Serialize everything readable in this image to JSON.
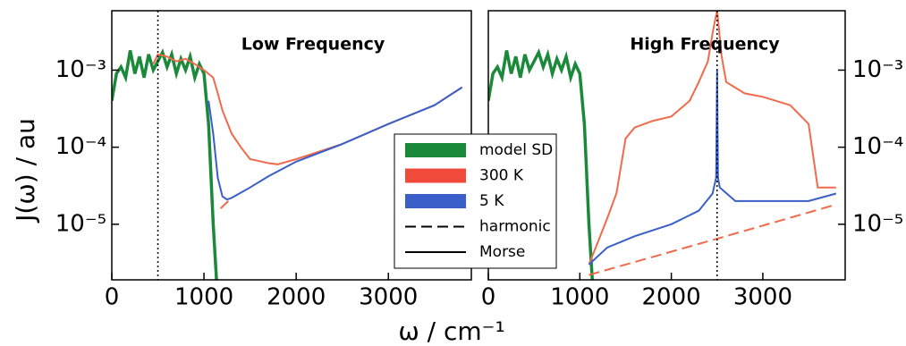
{
  "chart_data": [
    {
      "type": "line",
      "title": "Low Frequency",
      "ylabel": "J(ω) / au",
      "log_y": true,
      "tick_side": "left",
      "xlim": [
        0,
        3900
      ],
      "xticks": [
        0,
        1000,
        2000,
        3000
      ],
      "ylim": [
        1.9e-06,
        0.0059
      ],
      "yticks": [
        {
          "value": 0.001,
          "label": "10⁻³"
        },
        {
          "value": 0.0001,
          "label": "10⁻⁴"
        },
        {
          "value": 1e-05,
          "label": "10⁻⁵"
        }
      ],
      "vline": 500,
      "series": [
        {
          "name": "model SD",
          "color": "#1a8a3a",
          "dash": false,
          "x": [
            0,
            50,
            100,
            150,
            200,
            250,
            300,
            350,
            400,
            450,
            500,
            550,
            600,
            650,
            700,
            750,
            800,
            850,
            900,
            950,
            1000,
            1050,
            1100,
            1150
          ],
          "values": [
            0.0004,
            0.0009,
            0.0011,
            0.0008,
            0.0018,
            0.0009,
            0.0015,
            0.0008,
            0.0016,
            0.001,
            0.0013,
            0.0017,
            0.0011,
            0.0016,
            0.0009,
            0.0014,
            0.001,
            0.0015,
            0.0008,
            0.0012,
            0.0009,
            0.0002,
            1e-05,
            1e-06
          ]
        },
        {
          "name": "300 K",
          "color": "#f06a4c",
          "dash": false,
          "x": [
            450,
            500,
            600,
            700,
            800,
            900,
            1000,
            1100,
            1150,
            1200,
            1300,
            1400,
            1500,
            1600,
            1700,
            1800,
            2000,
            2500,
            3000,
            3500,
            3800
          ],
          "values": [
            0.0012,
            0.0016,
            0.0015,
            0.0013,
            0.0014,
            0.0012,
            0.001,
            0.0008,
            0.0005,
            0.0003,
            0.00015,
            0.0001,
            7e-05,
            6.6e-05,
            6.2e-05,
            6e-05,
            7e-05,
            0.00011,
            0.0002,
            0.00035,
            0.0006
          ]
        },
        {
          "name": "5 K",
          "color": "#3a5fc8",
          "dash": false,
          "x": [
            1050,
            1100,
            1150,
            1200,
            1250,
            1300,
            1500,
            1700,
            2000,
            2500,
            3000,
            3500,
            3800
          ],
          "values": [
            0.0004,
            0.00015,
            4e-05,
            2.3e-05,
            2.1e-05,
            2.2e-05,
            3e-05,
            4.2e-05,
            6.5e-05,
            0.00011,
            0.0002,
            0.00035,
            0.0006
          ]
        },
        {
          "name": "harmonic",
          "color": "#f06a4c",
          "dash": true,
          "x": [
            1180,
            1300
          ],
          "values": [
            1.6e-05,
            2.2e-05
          ]
        }
      ]
    },
    {
      "type": "line",
      "title": "High Frequency",
      "xlabel": "ω / cm⁻¹",
      "log_y": true,
      "tick_side": "right",
      "xlim": [
        0,
        3900
      ],
      "xticks": [
        0,
        1000,
        2000,
        3000
      ],
      "ylim": [
        1.9e-06,
        0.0059
      ],
      "yticks": [
        {
          "value": 0.001,
          "label": "10⁻³"
        },
        {
          "value": 0.0001,
          "label": "10⁻⁴"
        },
        {
          "value": 1e-05,
          "label": "10⁻⁵"
        }
      ],
      "vline": 2500,
      "series": [
        {
          "name": "model SD",
          "color": "#1a8a3a",
          "dash": false,
          "x": [
            0,
            50,
            100,
            150,
            200,
            250,
            300,
            350,
            400,
            450,
            500,
            550,
            600,
            650,
            700,
            750,
            800,
            850,
            900,
            950,
            1000,
            1050,
            1100,
            1150
          ],
          "values": [
            0.0004,
            0.0009,
            0.0011,
            0.0008,
            0.0018,
            0.0009,
            0.0015,
            0.0008,
            0.0016,
            0.001,
            0.0013,
            0.0017,
            0.0011,
            0.0016,
            0.0009,
            0.0014,
            0.001,
            0.0015,
            0.0008,
            0.0012,
            0.0009,
            0.0002,
            1e-05,
            1e-06
          ]
        },
        {
          "name": "300 K",
          "color": "#f06a4c",
          "dash": false,
          "x": [
            1100,
            1200,
            1300,
            1400,
            1500,
            1600,
            1800,
            2000,
            2200,
            2300,
            2400,
            2450,
            2500,
            2550,
            2600,
            2800,
            3000,
            3300,
            3500,
            3600,
            3800
          ],
          "values": [
            3e-06,
            6e-06,
            1.2e-05,
            2.5e-05,
            0.00013,
            0.00018,
            0.00022,
            0.00025,
            0.0004,
            0.0007,
            0.0013,
            0.003,
            0.006,
            0.0015,
            0.0007,
            0.0005,
            0.00045,
            0.00035,
            0.0002,
            3e-05,
            3e-05
          ]
        },
        {
          "name": "5 K",
          "color": "#3a5fc8",
          "dash": false,
          "x": [
            1100,
            1300,
            1600,
            2000,
            2300,
            2450,
            2490,
            2500,
            2510,
            2530,
            2700,
            3000,
            3500,
            3800
          ],
          "values": [
            3e-06,
            5e-06,
            7e-06,
            1e-05,
            1.5e-05,
            2.5e-05,
            4e-05,
            0.001,
            4e-05,
            3e-05,
            2e-05,
            2e-05,
            2e-05,
            2.5e-05
          ]
        },
        {
          "name": "harmonic",
          "color": "#f06a4c",
          "dash": true,
          "x": [
            1100,
            2500,
            3800
          ],
          "values": [
            2.2e-06,
            6.5e-06,
            1.8e-05
          ]
        }
      ]
    }
  ],
  "legend": [
    {
      "name": "model SD",
      "color": "#1a8a3a",
      "style": "box"
    },
    {
      "name": "300 K",
      "color": "#f04a3a",
      "style": "box"
    },
    {
      "name": "5 K",
      "color": "#3a5fc8",
      "style": "box"
    },
    {
      "name": "harmonic",
      "color": "#000000",
      "style": "dash"
    },
    {
      "name": "Morse",
      "color": "#000000",
      "style": "line"
    }
  ]
}
